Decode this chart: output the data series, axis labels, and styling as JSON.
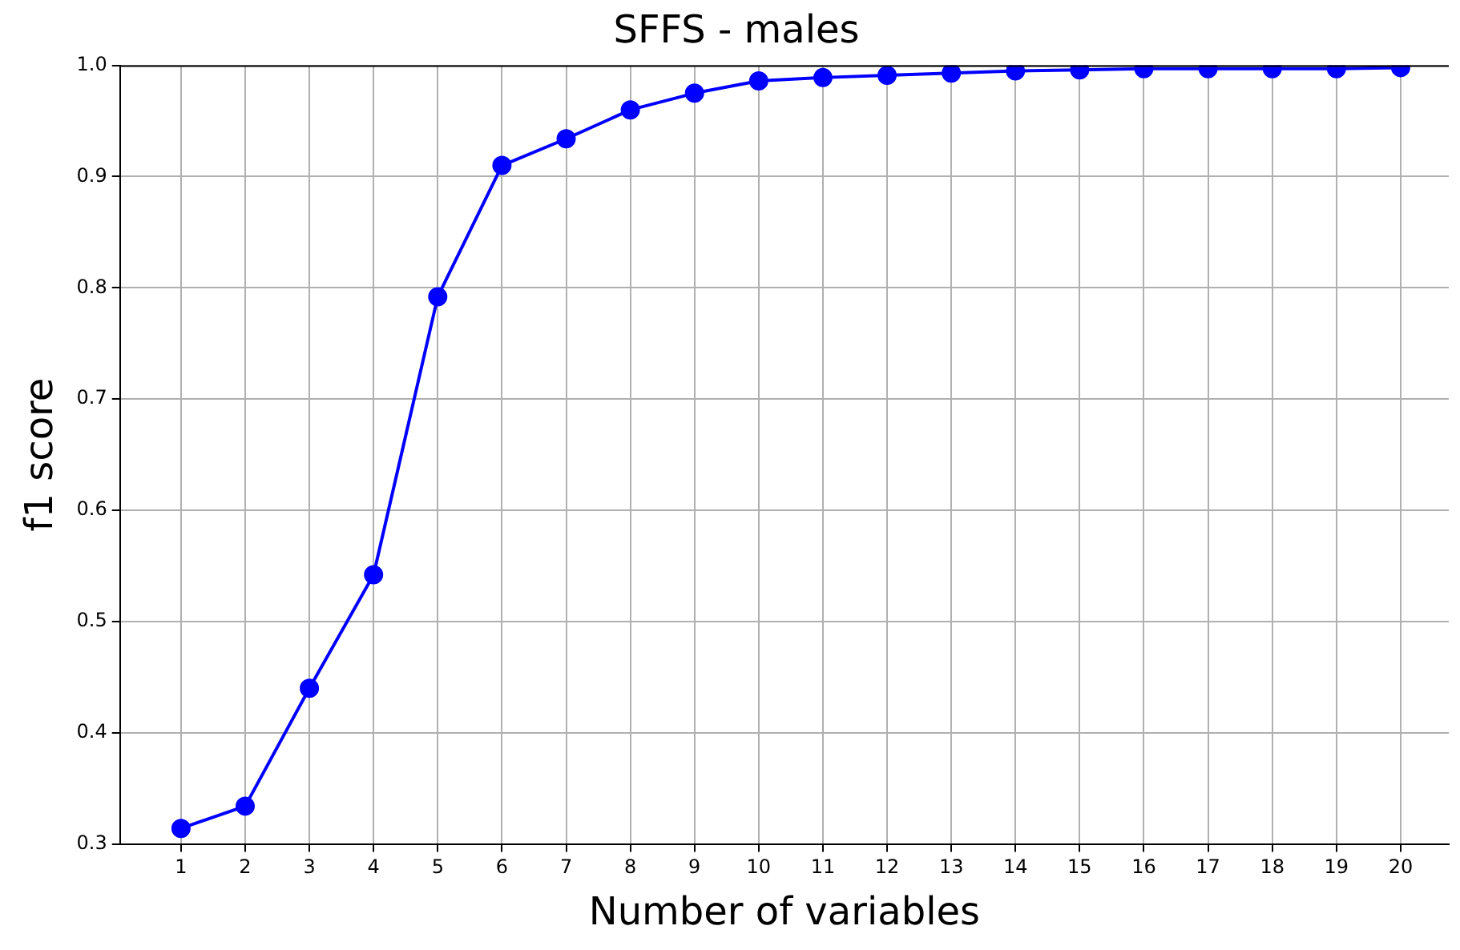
{
  "chart_data": {
    "type": "line",
    "title": "SFFS - males",
    "xlabel": "Number of variables",
    "ylabel": "f1 score",
    "x": [
      1,
      2,
      3,
      4,
      5,
      6,
      7,
      8,
      9,
      10,
      11,
      12,
      13,
      14,
      15,
      16,
      17,
      18,
      19,
      20
    ],
    "series": [
      {
        "color": "#0000ff",
        "values": [
          0.314,
          0.334,
          0.44,
          0.542,
          0.792,
          0.91,
          0.934,
          0.96,
          0.975,
          0.986,
          0.989,
          0.991,
          0.993,
          0.995,
          0.996,
          0.997,
          0.997,
          0.997,
          0.997,
          0.998
        ]
      }
    ],
    "xlim": [
      0.05,
      20.75
    ],
    "xticks": [
      1,
      2,
      3,
      4,
      5,
      6,
      7,
      8,
      9,
      10,
      11,
      12,
      13,
      14,
      15,
      16,
      17,
      18,
      19,
      20
    ],
    "ylim": [
      0.3,
      1.0
    ],
    "yticks": [
      {
        "value": 0.3,
        "label": "0.3"
      },
      {
        "value": 0.4,
        "label": "0.4"
      },
      {
        "value": 0.5,
        "label": "0.5"
      },
      {
        "value": 0.6,
        "label": "0.6"
      },
      {
        "value": 0.7,
        "label": "0.7"
      },
      {
        "value": 0.8,
        "label": "0.8"
      },
      {
        "value": 0.9,
        "label": "0.9"
      },
      {
        "value": 1.0,
        "label": "1.0"
      }
    ],
    "grid": true,
    "legend": false,
    "marker": "circle",
    "line_style": "solid"
  }
}
